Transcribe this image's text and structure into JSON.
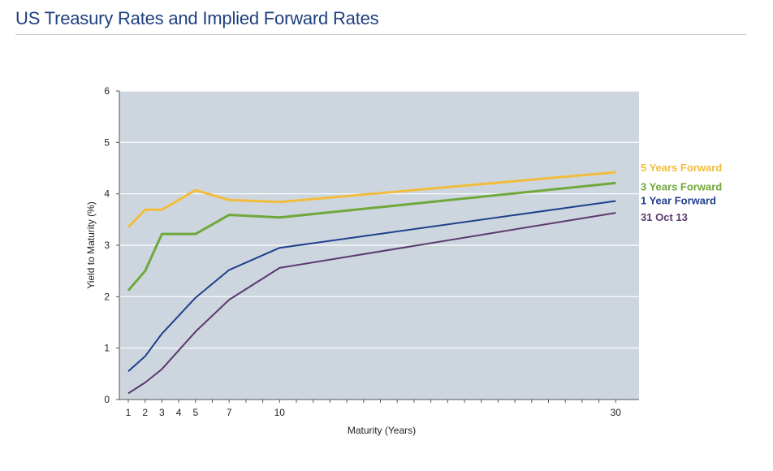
{
  "page": {
    "title": "US Treasury Rates and Implied Forward Rates"
  },
  "chart_data": {
    "type": "line",
    "title": "",
    "xlabel": "Maturity (Years)",
    "ylabel": "Yield to Maturity (%)",
    "xlim": [
      0.5,
      30.5
    ],
    "ylim": [
      0,
      6
    ],
    "y_ticks": [
      0,
      1,
      2,
      3,
      4,
      5,
      6
    ],
    "x_tick_labels": [
      1,
      2,
      3,
      4,
      5,
      7,
      10,
      30
    ],
    "x_minor_ticks": [
      1,
      2,
      3,
      4,
      5,
      6,
      7,
      8,
      9,
      10,
      11,
      12,
      13,
      14,
      15,
      16,
      17,
      18,
      19,
      20,
      21,
      22,
      23,
      24,
      25,
      26,
      27,
      28,
      29,
      30
    ],
    "grid": true,
    "plot_background": "#cdd6df",
    "legend": "direct labels at right end of lines",
    "series": [
      {
        "name": "5 Years Forward",
        "color": "#f2bc3d",
        "stroke_width": 3,
        "x": [
          1,
          2,
          3,
          5,
          7,
          10,
          30
        ],
        "y": [
          3.35,
          3.69,
          3.69,
          4.07,
          3.88,
          3.84,
          4.42
        ]
      },
      {
        "name": "3 Years Forward",
        "color": "#6fa83a",
        "stroke_width": 3,
        "x": [
          1,
          2,
          3,
          5,
          7,
          10,
          30
        ],
        "y": [
          2.12,
          2.5,
          3.22,
          3.22,
          3.59,
          3.54,
          4.21
        ]
      },
      {
        "name": "1 Year Forward",
        "color": "#1f3f8c",
        "stroke_width": 2,
        "x": [
          1,
          2,
          3,
          5,
          7,
          10,
          30
        ],
        "y": [
          0.55,
          0.84,
          1.28,
          1.98,
          2.52,
          2.95,
          3.86
        ]
      },
      {
        "name": "31 Oct 13",
        "color": "#5a3a6e",
        "stroke_width": 2,
        "x": [
          1,
          2,
          3,
          5,
          7,
          10,
          30
        ],
        "y": [
          0.12,
          0.33,
          0.59,
          1.32,
          1.94,
          2.56,
          3.63
        ]
      }
    ]
  }
}
